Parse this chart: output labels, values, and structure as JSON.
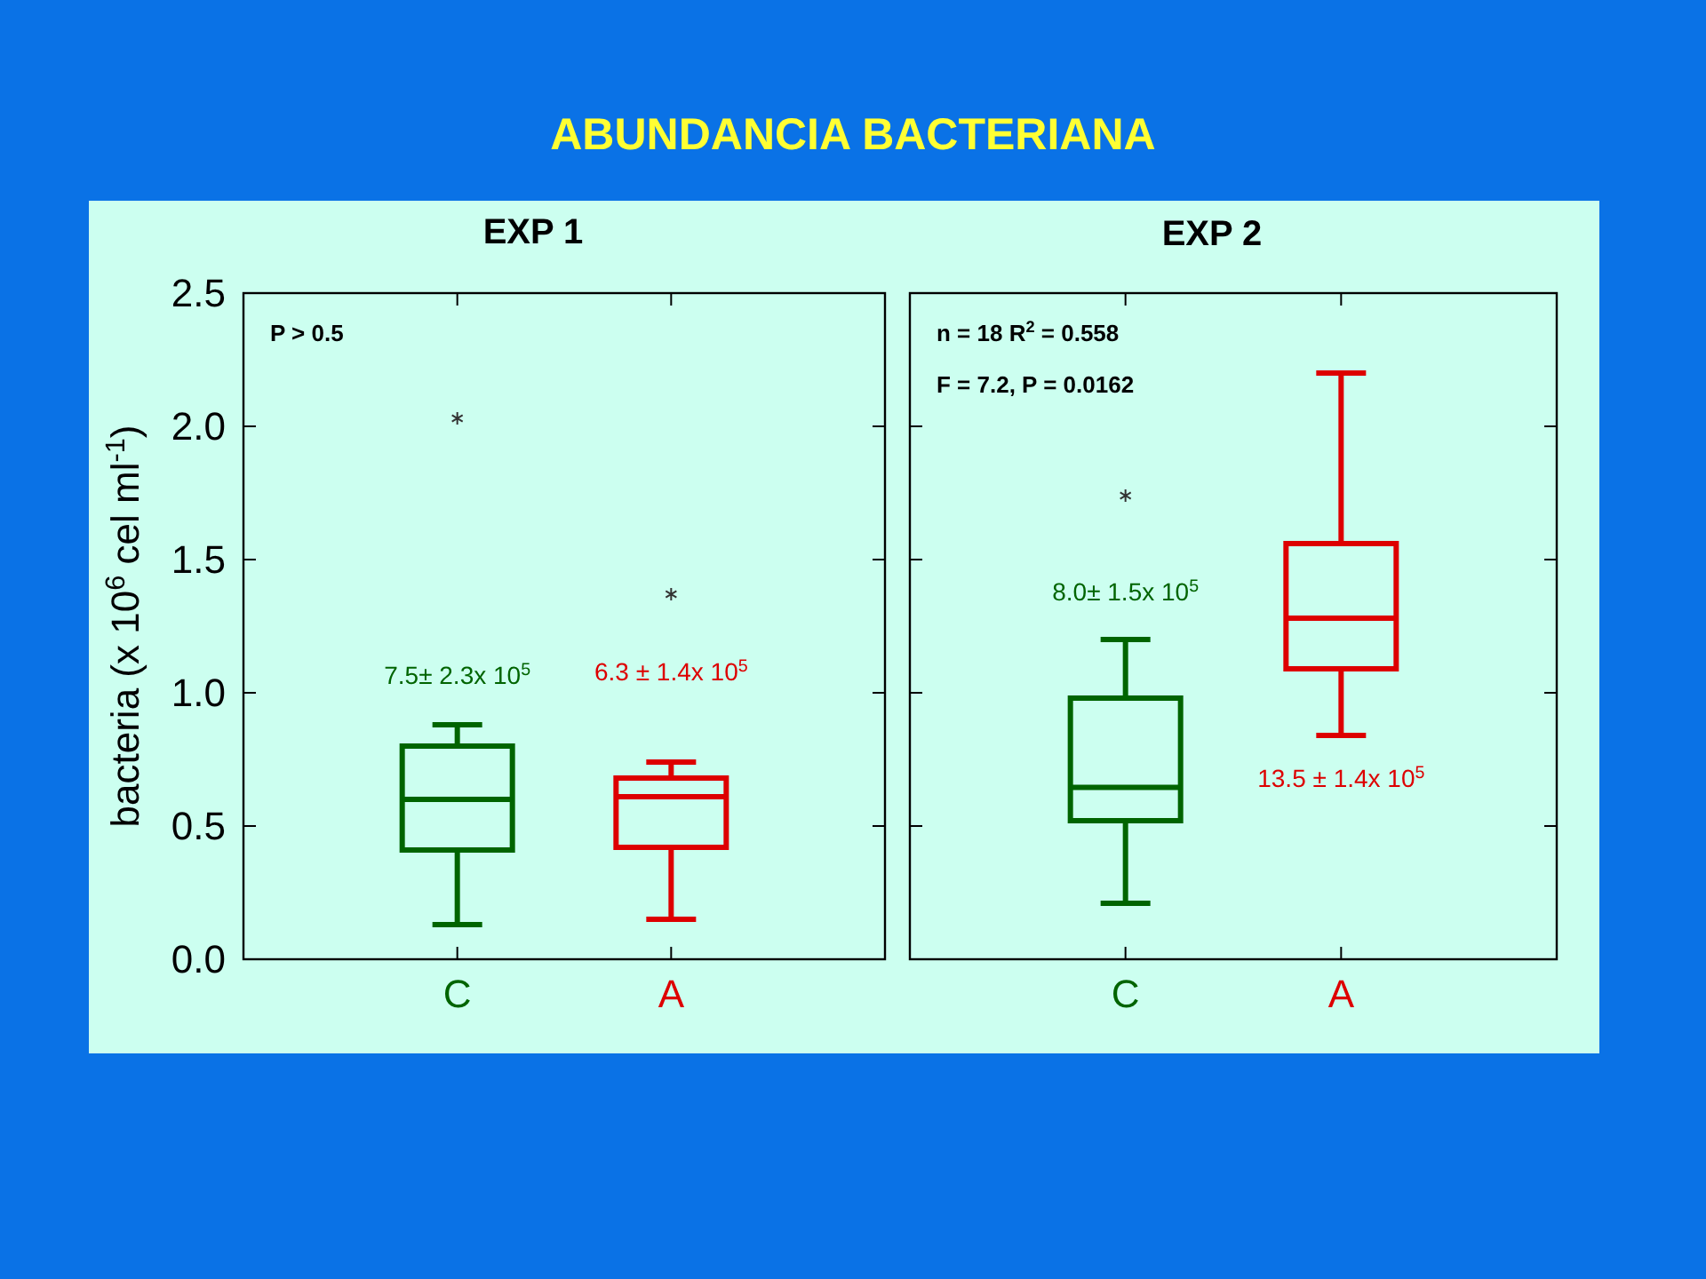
{
  "chart_data": [
    {
      "type": "box",
      "title": "ABUNDANCIA BACTERIANA",
      "subtitle": "EXP 1",
      "ylabel": "bacteria (x 10$^{6}$ cel ml$^{-1}$)",
      "categories": [
        "C",
        "A"
      ],
      "colors": [
        "#006400",
        "#dd0000"
      ],
      "boxes": [
        {
          "low": 0.13,
          "q1": 0.41,
          "median": 0.6,
          "q3": 0.8,
          "high": 0.88,
          "outliers": [
            2.03
          ]
        },
        {
          "low": 0.15,
          "q1": 0.42,
          "median": 0.61,
          "q3": 0.68,
          "high": 0.74,
          "outliers": [
            1.37
          ]
        }
      ],
      "ylim": [
        0,
        2.5
      ],
      "yticks": [
        {
          "value": 0,
          "label": "0.0"
        },
        0.5,
        {
          "value": 1,
          "label": "1.0"
        },
        1.5,
        {
          "value": 2,
          "label": "2.0"
        },
        2.5
      ],
      "annotations": [
        "P > 0.5",
        "7.5± 2.3x 10$^{5}$",
        "6.3 ± 1.4x 10$^{5}$"
      ]
    },
    {
      "type": "box",
      "subtitle": "EXP 2",
      "categories": [
        "C",
        "A"
      ],
      "colors": [
        "#006400",
        "#dd0000"
      ],
      "boxes": [
        {
          "low": 0.21,
          "q1": 0.52,
          "median": 0.645,
          "q3": 0.98,
          "high": 1.2,
          "outliers": [
            1.74
          ]
        },
        {
          "low": 0.84,
          "q1": 1.09,
          "median": 1.28,
          "q3": 1.56,
          "high": 2.2
        }
      ],
      "ylim": [
        0,
        2.5
      ],
      "yticks": [
        0,
        0.5,
        1,
        1.5,
        2,
        2.5
      ],
      "tick_labels": "x",
      "annotations": [
        "n = 18  R$^{2}$ = 0.558",
        "F = 7.2, P = 0.0162",
        "8.0± 1.5x 10$^{5}$",
        "13.5 ± 1.4x 10$^{5}$"
      ]
    }
  ]
}
